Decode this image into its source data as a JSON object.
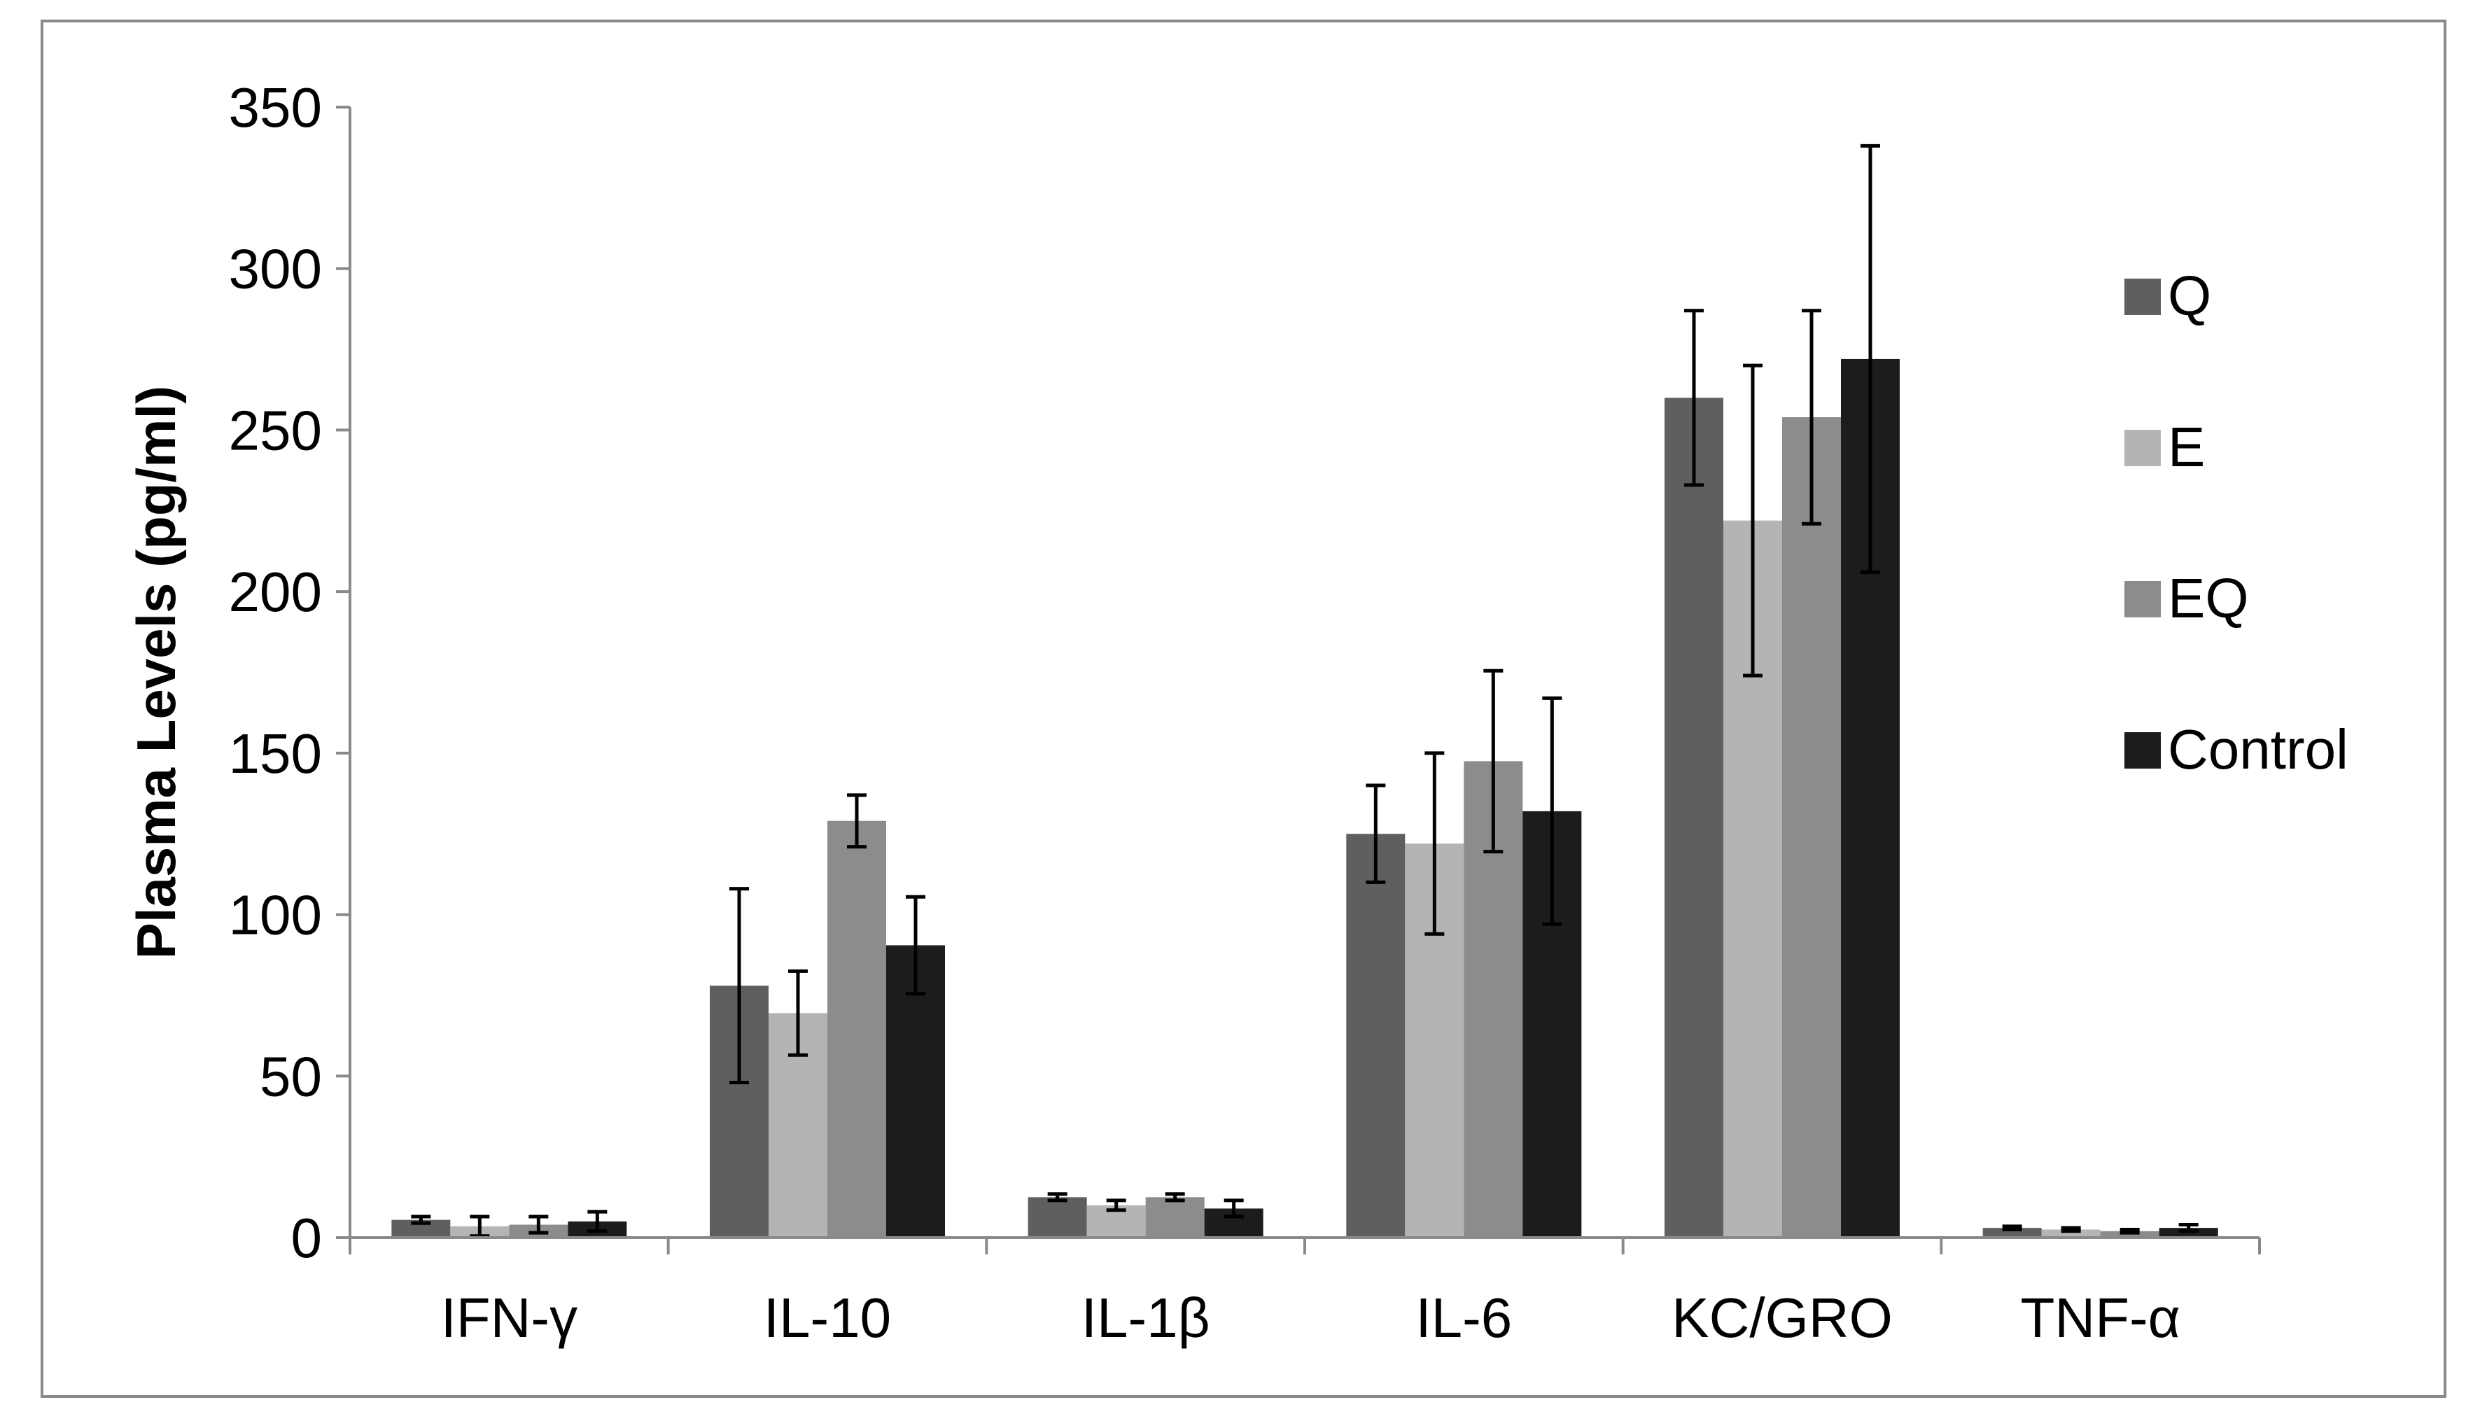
{
  "chart_data": {
    "type": "bar",
    "title": "",
    "xlabel": "",
    "ylabel": "Plasma Levels (pg/ml)",
    "ylim": [
      0,
      350
    ],
    "yticks": [
      0,
      50,
      100,
      150,
      200,
      250,
      300,
      350
    ],
    "grid": false,
    "legend_position": "right",
    "categories": [
      "IFN-γ",
      "IL-10",
      "IL-1β",
      "IL-6",
      "KC/GRO",
      "TNF-α"
    ],
    "series": [
      {
        "name": "Q",
        "color": "#5f5f5f",
        "values": [
          5.5,
          78,
          12.5,
          125,
          260,
          3
        ],
        "errors": [
          1,
          30,
          1,
          15,
          27,
          0.5
        ]
      },
      {
        "name": "E",
        "color": "#b4b4b4",
        "values": [
          3.5,
          69.5,
          10,
          122,
          222,
          2.5
        ],
        "errors": [
          3,
          13,
          1.5,
          28,
          48,
          0.5
        ]
      },
      {
        "name": "EQ",
        "color": "#8c8c8c",
        "values": [
          4,
          129,
          12.5,
          147.5,
          254,
          2
        ],
        "errors": [
          2.5,
          8,
          1,
          28,
          33,
          0.5
        ]
      },
      {
        "name": "Control",
        "color": "#1c1c1c",
        "values": [
          5,
          90.5,
          9,
          132,
          272,
          3
        ],
        "errors": [
          3,
          15,
          2.5,
          35,
          66,
          1
        ]
      }
    ]
  }
}
